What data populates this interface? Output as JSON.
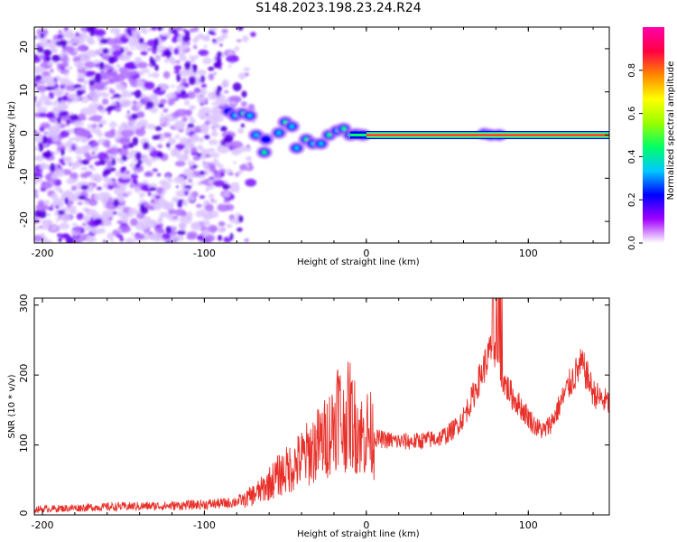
{
  "title": "S148.2023.198.23.24.R24",
  "chart_data": [
    {
      "type": "heatmap",
      "xlabel": "Height of straight line (km)",
      "ylabel": "Frequency (Hz)",
      "xlim": [
        -205,
        150
      ],
      "ylim": [
        -25,
        25
      ],
      "x_ticks": [
        -200,
        -100,
        0,
        100
      ],
      "y_ticks": [
        -20,
        -10,
        0,
        10,
        20
      ],
      "line_frequency": 0,
      "line_start_height": 0,
      "blobs": [
        {
          "x": -85,
          "y": 5.5,
          "v": 0.25
        },
        {
          "x": -81,
          "y": 4.5,
          "v": 0.35
        },
        {
          "x": -76,
          "y": 5,
          "v": 0.4
        },
        {
          "x": -72,
          "y": 4.5,
          "v": 0.3
        },
        {
          "x": -68,
          "y": 0,
          "v": 0.3
        },
        {
          "x": -63,
          "y": -4,
          "v": 0.4
        },
        {
          "x": -62,
          "y": -1,
          "v": 0.25
        },
        {
          "x": -54,
          "y": 0.5,
          "v": 0.35
        },
        {
          "x": -50,
          "y": 3,
          "v": 0.4
        },
        {
          "x": -46,
          "y": 2,
          "v": 0.3
        },
        {
          "x": -43,
          "y": -3,
          "v": 0.3
        },
        {
          "x": -37,
          "y": -1,
          "v": 0.4
        },
        {
          "x": -33,
          "y": -2,
          "v": 0.35
        },
        {
          "x": -28,
          "y": -2,
          "v": 0.35
        },
        {
          "x": -23,
          "y": 0,
          "v": 0.4
        },
        {
          "x": -18,
          "y": 1,
          "v": 0.35
        },
        {
          "x": -14,
          "y": 1.5,
          "v": 0.45
        },
        {
          "x": -10,
          "y": 0,
          "v": 0.4
        },
        {
          "x": -6,
          "y": 0.2,
          "v": 0.4
        },
        {
          "x": -2,
          "y": 0,
          "v": 0.35
        },
        {
          "x": 73,
          "y": 0.3,
          "v": 0.45
        },
        {
          "x": 77,
          "y": 0,
          "v": 0.35
        },
        {
          "x": 82,
          "y": 0,
          "v": 0.3
        }
      ],
      "colorbar": {
        "label": "Normalized spectral amplitude",
        "range": [
          0,
          1
        ],
        "ticks": [
          "0.0",
          "0.2",
          "0.4",
          "0.6",
          "0.8"
        ],
        "colors": [
          "#ffffff",
          "#a000ff",
          "#0000ff",
          "#00c8ff",
          "#00ff66",
          "#99ff00",
          "#ffff00",
          "#ff8800",
          "#ff0044",
          "#ff00aa"
        ]
      }
    },
    {
      "type": "line",
      "xlabel": "Height of straight line (km)",
      "ylabel": "SNR (10 * v/v)",
      "xlim": [
        -205,
        150
      ],
      "ylim": [
        0,
        310
      ],
      "x_ticks": [
        -200,
        -100,
        0,
        100
      ],
      "y_ticks": [
        0,
        100,
        200,
        300
      ],
      "color": "#e8302a",
      "series": [
        {
          "x": [
            -205,
            -180,
            -150,
            -120,
            -100,
            -85,
            -75,
            -65,
            -55,
            -45,
            -40,
            -35,
            -30,
            -25,
            -20,
            -17,
            -15,
            -12,
            -10,
            -8,
            -5,
            -2,
            0,
            5,
            10,
            20,
            30,
            40,
            45,
            50,
            55,
            60,
            65,
            70,
            75,
            78,
            80,
            82,
            85,
            90,
            95,
            100,
            105,
            110,
            115,
            120,
            125,
            130,
            133,
            137,
            140,
            145,
            150
          ],
          "y": [
            8,
            10,
            12,
            13,
            15,
            17,
            22,
            35,
            55,
            70,
            80,
            90,
            100,
            110,
            130,
            160,
            120,
            140,
            145,
            130,
            125,
            110,
            120,
            110,
            108,
            105,
            105,
            108,
            110,
            115,
            125,
            140,
            165,
            195,
            225,
            240,
            235,
            220,
            190,
            170,
            155,
            140,
            125,
            120,
            135,
            160,
            185,
            205,
            215,
            195,
            175,
            165,
            160
          ]
        }
      ]
    }
  ]
}
